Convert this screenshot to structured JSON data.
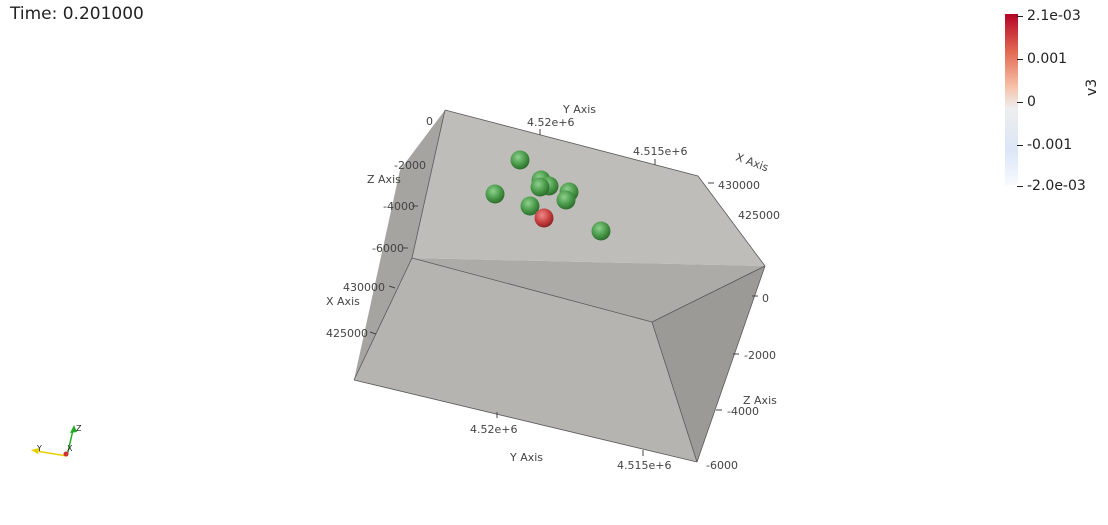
{
  "time_label": "Time: 0.201000",
  "legend": {
    "title": "v3",
    "ticks": [
      "2.1e-03",
      "0.001",
      "0",
      "-0.001",
      "-2.0e-03"
    ],
    "colors": {
      "max": "#b40426",
      "mid": "#eeeeee",
      "min": "#f8faff"
    }
  },
  "axes": {
    "back": {
      "y_title": "Y Axis",
      "y_ticks": [
        "4.52e+6",
        "4.515e+6"
      ],
      "z_title": "Z Axis",
      "z_ticks": [
        "0",
        "-2000",
        "-4000",
        "-6000"
      ],
      "x_title": "X Axis",
      "x_ticks": [
        "430000",
        "425000"
      ],
      "x_right_title": "X Axis",
      "x_right_ticks": [
        "430000",
        "425000"
      ]
    },
    "front": {
      "y_title": "Y Axis",
      "y_ticks": [
        "4.52e+6",
        "4.515e+6"
      ],
      "z_title": "Z Axis",
      "z_ticks": [
        "0",
        "-2000",
        "-4000",
        "-6000"
      ]
    }
  },
  "spheres": {
    "green_color": "#4a9a4a",
    "red_color": "#c84040",
    "count_green": 10,
    "count_red": 1
  },
  "orientation": {
    "x": "X",
    "y": "Y",
    "z": "Z"
  }
}
